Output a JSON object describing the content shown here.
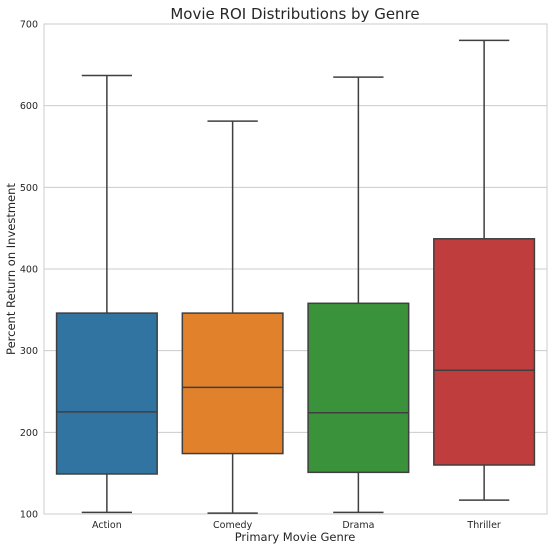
{
  "chart_data": {
    "type": "box",
    "title": "Movie ROI Distributions by Genre",
    "xlabel": "Primary Movie Genre",
    "ylabel": "Percent Return on Investment",
    "ylim": [
      100,
      700
    ],
    "yticks": [
      100,
      200,
      300,
      400,
      500,
      600,
      700
    ],
    "grid": true,
    "categories": [
      "Action",
      "Comedy",
      "Drama",
      "Thriller"
    ],
    "colors": [
      "#3274a1",
      "#e1812c",
      "#3a923a",
      "#c03d3e"
    ],
    "boxes": [
      {
        "whisker_low": 102,
        "q1": 149,
        "median": 225,
        "q3": 346,
        "whisker_high": 637
      },
      {
        "whisker_low": 101,
        "q1": 174,
        "median": 255,
        "q3": 346,
        "whisker_high": 581
      },
      {
        "whisker_low": 102,
        "q1": 151,
        "median": 224,
        "q3": 358,
        "whisker_high": 635
      },
      {
        "whisker_low": 117,
        "q1": 160,
        "median": 276,
        "q3": 437,
        "whisker_high": 680
      }
    ]
  }
}
